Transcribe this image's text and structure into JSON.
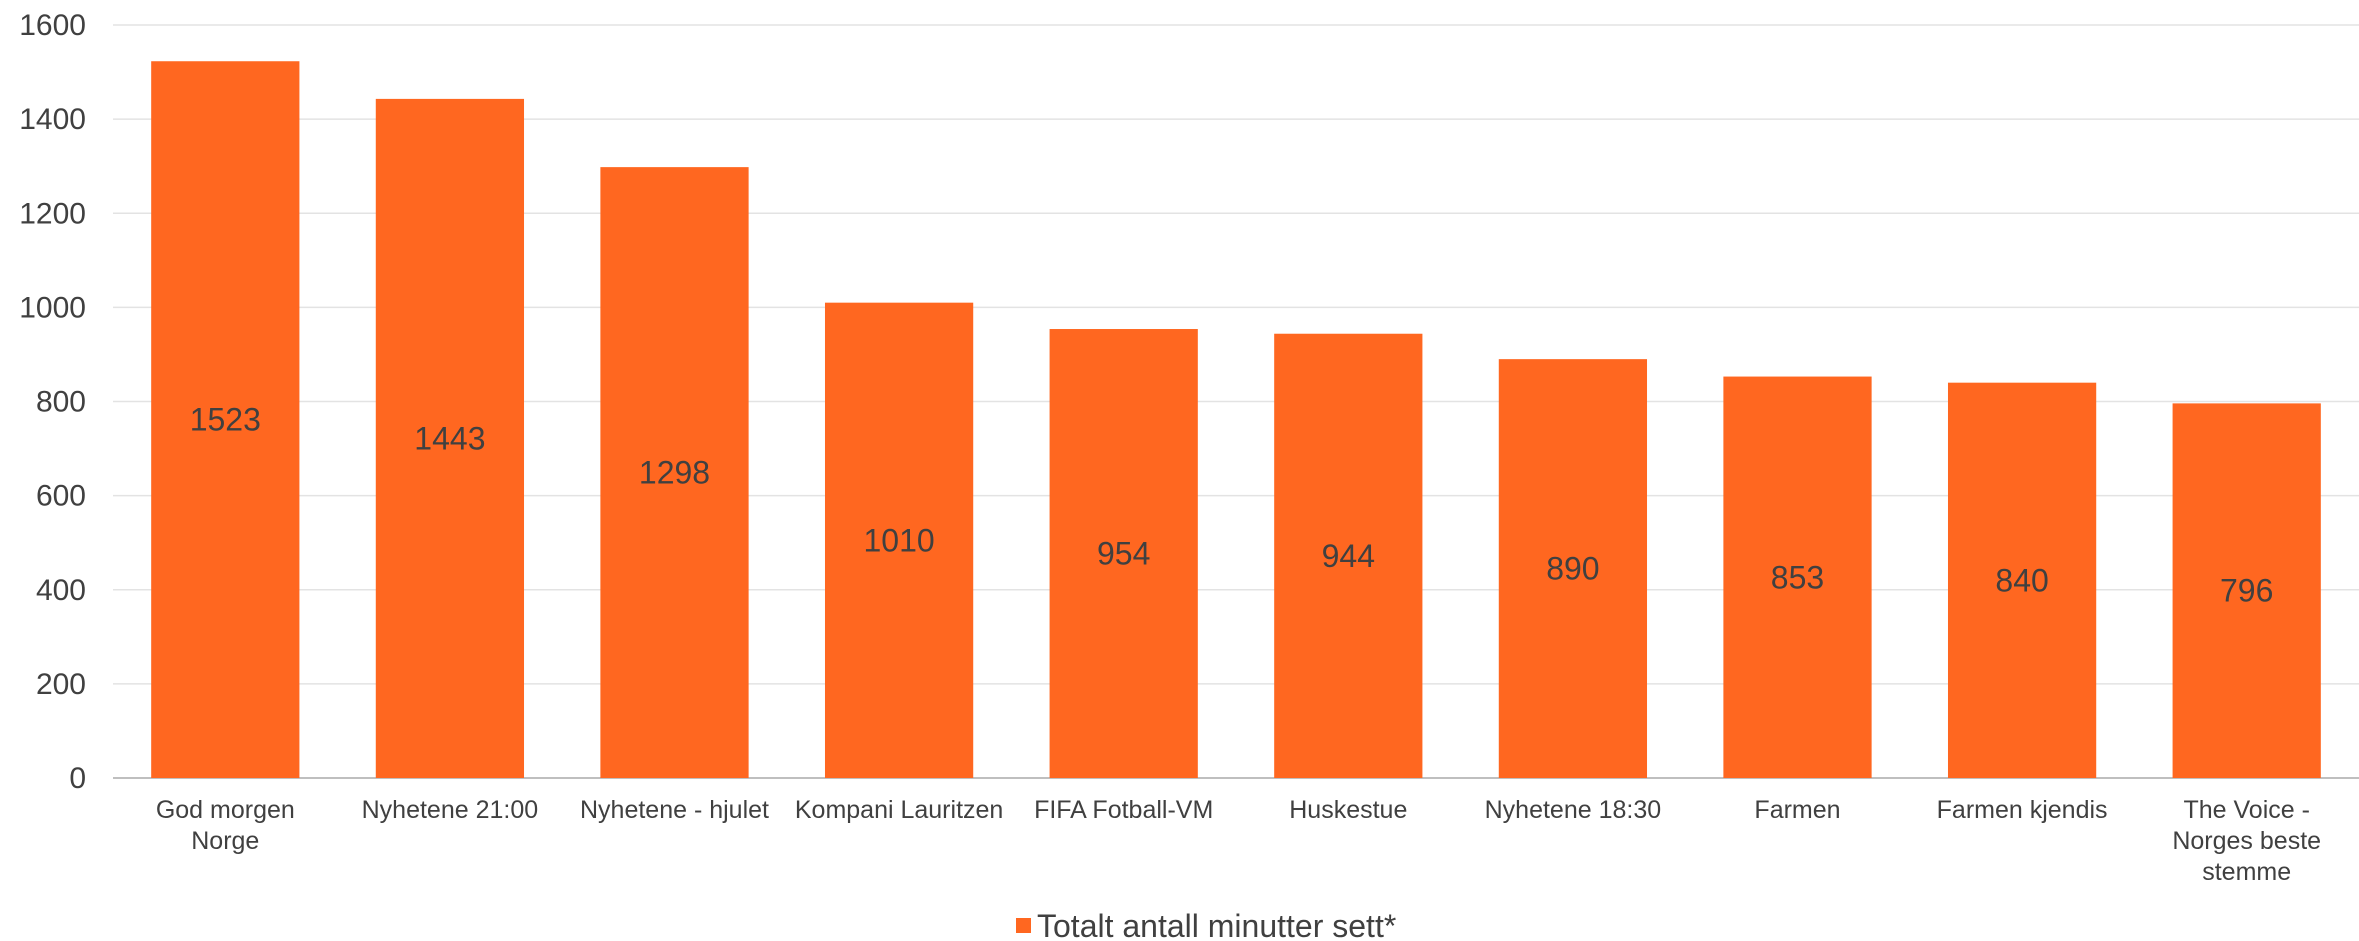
{
  "chart_data": {
    "type": "bar",
    "categories": [
      [
        "God morgen",
        "Norge"
      ],
      [
        "Nyhetene 21:00"
      ],
      [
        "Nyhetene - hjulet"
      ],
      [
        "Kompani Lauritzen"
      ],
      [
        "FIFA Fotball-VM"
      ],
      [
        "Huskestue"
      ],
      [
        "Nyhetene 18:30"
      ],
      [
        "Farmen"
      ],
      [
        "Farmen kjendis"
      ],
      [
        "The Voice -",
        "Norges beste",
        "stemme"
      ]
    ],
    "series": [
      {
        "name": "Totalt antall minutter sett*",
        "values": [
          1523,
          1443,
          1298,
          1010,
          954,
          944,
          890,
          853,
          840,
          796
        ],
        "color": "#FF6720"
      }
    ],
    "ylim": [
      0,
      1600
    ],
    "yticks": [
      0,
      200,
      400,
      600,
      800,
      1000,
      1200,
      1400,
      1600
    ],
    "grid": true,
    "legend_position": "bottom"
  }
}
